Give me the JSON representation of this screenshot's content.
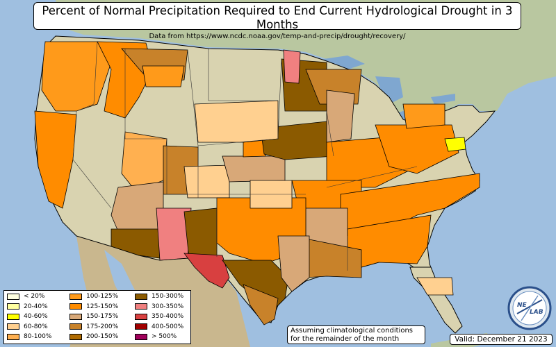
{
  "title": "Percent of Normal Precipitation Required to End Current Hydrological Drought in 3 Months",
  "subtitle": "Data from https://www.ncdc.noaa.gov/temp-and-precip/drought/recovery/",
  "legend": [
    {
      "label": "< 20%",
      "color": "#ffffe0"
    },
    {
      "label": "20-40%",
      "color": "#ffffa0"
    },
    {
      "label": "40-60%",
      "color": "#ffff00"
    },
    {
      "label": "60-80%",
      "color": "#ffd090"
    },
    {
      "label": "80-100%",
      "color": "#ffb050"
    },
    {
      "label": "100-125%",
      "color": "#ff9a1a"
    },
    {
      "label": "125-150%",
      "color": "#ff8c00"
    },
    {
      "label": "150-175%",
      "color": "#d8a878"
    },
    {
      "label": "175-200%",
      "color": "#c8822a"
    },
    {
      "label": "200-150%",
      "color": "#b06b00"
    },
    {
      "label": "150-300%",
      "color": "#8b5a00"
    },
    {
      "label": "300-350%",
      "color": "#f08080"
    },
    {
      "label": "350-400%",
      "color": "#d84040"
    },
    {
      "label": "400-500%",
      "color": "#a00000"
    },
    {
      "label": "> 500%",
      "color": "#a0005a"
    }
  ],
  "note_line1": "Assuming climatological conditions",
  "note_line2": "for the remainder of the month",
  "valid": "Valid: December 21 2023",
  "logo_text": {
    "left": "NE",
    "right": "LAB"
  },
  "colors": {
    "ocean": "#9fbfe0",
    "land": "#d9d3b0",
    "mexico_desert": "#c9b78e",
    "canada": "#b9c7a0"
  }
}
